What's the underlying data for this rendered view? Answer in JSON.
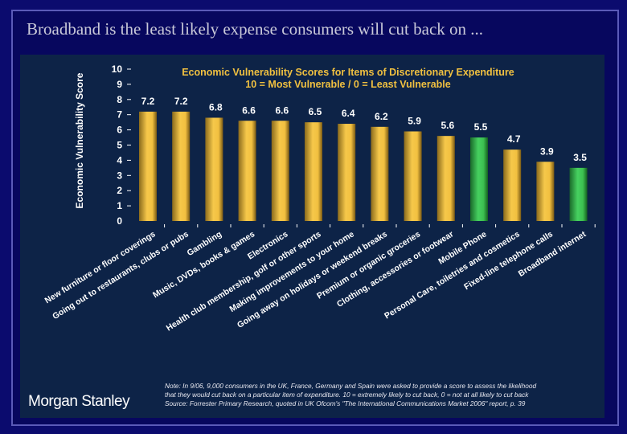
{
  "slide_title": "Broadband is the least likely expense consumers will cut back on ...",
  "logo": "Morgan Stanley",
  "note_lines": [
    "Note: In 9/06, 9,000 consumers in the UK, France, Germany and Spain were asked to provide a score to assess the likelihood",
    "that they would cut back on a particular item of expenditure. 10 = extremely likely to cut back, 0 = not at all likely to cut back",
    "Source: Forrester Primary Research, quoted in UK Ofcom's \"The International Communications Market 2006\" report, p. 39"
  ],
  "colors": {
    "gold": "#f0c040",
    "green": "#3ec050",
    "title": "#f0c040",
    "text": "#ffffff"
  },
  "chart_data": {
    "type": "bar",
    "title": "Economic Vulnerability Scores for Items of Discretionary Expenditure",
    "subtitle": "10 = Most Vulnerable / 0 = Least Vulnerable",
    "ylabel": "Economic Vulnerability Score",
    "xlabel": "",
    "ylim": [
      0,
      10
    ],
    "yticks": [
      0,
      1,
      2,
      3,
      4,
      5,
      6,
      7,
      8,
      9,
      10
    ],
    "grid": false,
    "categories": [
      "New furniture or floor coverings",
      "Going out to restaurants, clubs or pubs",
      "Gambling",
      "Music, DVDs, books & games",
      "Electronics",
      "Health club membership, golf or other sports",
      "Making improvements to your home",
      "Going away on holidays or weekend breaks",
      "Premium or organic groceries",
      "Clothing, accessories or footwear",
      "Mobile Phone",
      "Personal Care, toiletries and cosmetics",
      "Fixed-line telephone calls",
      "Broadband internet"
    ],
    "values": [
      7.2,
      7.2,
      6.8,
      6.6,
      6.6,
      6.5,
      6.4,
      6.2,
      5.9,
      5.6,
      5.5,
      4.7,
      3.9,
      3.5
    ],
    "value_labels": [
      "7.2",
      "7.2",
      "6.8",
      "6.6",
      "6.6",
      "6.5",
      "6.4",
      "6.2",
      "5.9",
      "5.6",
      "5.5",
      "4.7",
      "3.9",
      "3.5"
    ],
    "highlighted": [
      "Mobile Phone",
      "Broadband internet"
    ]
  }
}
